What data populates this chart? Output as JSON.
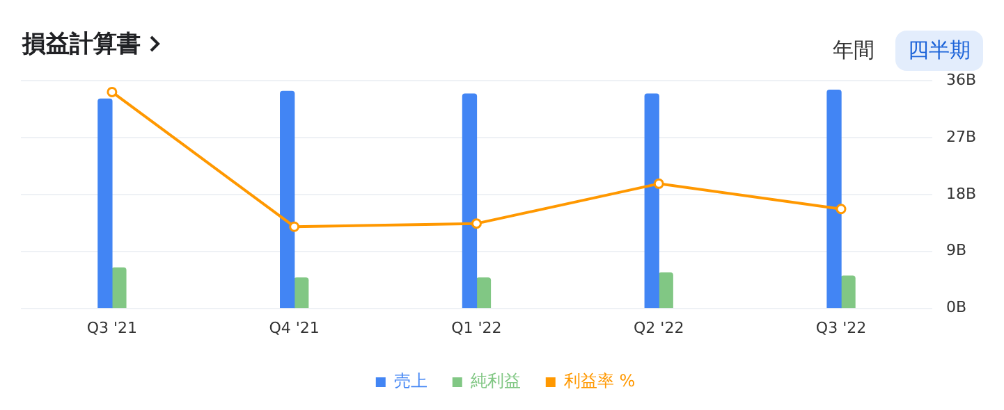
{
  "chart_data": {
    "type": "bar",
    "title": "損益計算書",
    "categories": [
      "Q3 '21",
      "Q4 '21",
      "Q1 '22",
      "Q2 '22",
      "Q3 '22"
    ],
    "series": [
      {
        "name": "売上",
        "color": "#4285f4",
        "values": [
          33.1,
          34.3,
          33.9,
          33.9,
          34.5
        ]
      },
      {
        "name": "純利益",
        "color": "#81c784",
        "values": [
          6.4,
          4.8,
          4.8,
          5.6,
          5.1
        ]
      },
      {
        "name": "利益率 %",
        "type": "line",
        "color": "#ff9800",
        "values": [
          34.2,
          12.9,
          13.4,
          19.7,
          15.7
        ]
      }
    ],
    "ylim": [
      0,
      36
    ],
    "yticks": [
      {
        "value": 0,
        "label": "0B"
      },
      {
        "value": 9,
        "label": "9B"
      },
      {
        "value": 18,
        "label": "18B"
      },
      {
        "value": 27,
        "label": "27B"
      },
      {
        "value": 36,
        "label": "36B"
      }
    ],
    "grid": "y",
    "legend": "bottom",
    "marker": "circle",
    "line_style": "solid",
    "annotations": [
      "年間",
      "四半期"
    ]
  }
}
